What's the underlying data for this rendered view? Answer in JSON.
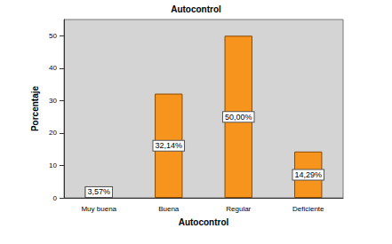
{
  "chart_data": {
    "type": "bar",
    "title": "Autocontrol",
    "x_label": "Autocontrol",
    "y_label": "Porcentaje",
    "categories": [
      "Muy buena",
      "Buena",
      "Regular",
      "Deficiente"
    ],
    "values": [
      3.57,
      32.14,
      50.0,
      14.29
    ],
    "value_labels": [
      "3,57%",
      "32,14%",
      "50,00%",
      "14,29%"
    ],
    "color": "#f7941d",
    "ylim": [
      0,
      55
    ],
    "yticks": [
      0,
      10,
      20,
      30,
      40,
      50
    ],
    "grid": false,
    "data_labels": true
  }
}
